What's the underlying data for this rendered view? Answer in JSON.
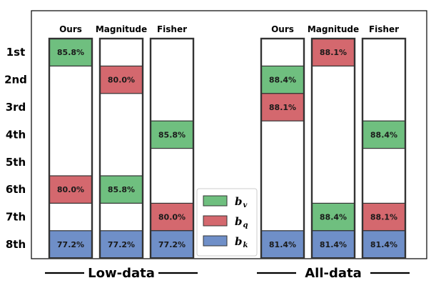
{
  "chart_data": {
    "type": "table",
    "title": "",
    "ranks": [
      "1st",
      "2nd",
      "3rd",
      "4th",
      "5th",
      "6th",
      "7th",
      "8th"
    ],
    "groups": [
      {
        "label": "Low-data",
        "columns": [
          {
            "name": "Ours",
            "cells": [
              {
                "rank": 1,
                "series": "v",
                "value": "85.8%"
              },
              {
                "rank": 6,
                "series": "q",
                "value": "80.0%"
              },
              {
                "rank": 8,
                "series": "k",
                "value": "77.2%"
              }
            ]
          },
          {
            "name": "Magnitude",
            "cells": [
              {
                "rank": 2,
                "series": "q",
                "value": "80.0%"
              },
              {
                "rank": 6,
                "series": "v",
                "value": "85.8%"
              },
              {
                "rank": 8,
                "series": "k",
                "value": "77.2%"
              }
            ]
          },
          {
            "name": "Fisher",
            "cells": [
              {
                "rank": 4,
                "series": "v",
                "value": "85.8%"
              },
              {
                "rank": 7,
                "series": "q",
                "value": "80.0%"
              },
              {
                "rank": 8,
                "series": "k",
                "value": "77.2%"
              }
            ]
          }
        ]
      },
      {
        "label": "All-data",
        "columns": [
          {
            "name": "Ours",
            "cells": [
              {
                "rank": 2,
                "series": "v",
                "value": "88.4%"
              },
              {
                "rank": 3,
                "series": "q",
                "value": "88.1%"
              },
              {
                "rank": 8,
                "series": "k",
                "value": "81.4%"
              }
            ]
          },
          {
            "name": "Magnitude",
            "cells": [
              {
                "rank": 1,
                "series": "q",
                "value": "88.1%"
              },
              {
                "rank": 7,
                "series": "v",
                "value": "88.4%"
              },
              {
                "rank": 8,
                "series": "k",
                "value": "81.4%"
              }
            ]
          },
          {
            "name": "Fisher",
            "cells": [
              {
                "rank": 4,
                "series": "v",
                "value": "88.4%"
              },
              {
                "rank": 7,
                "series": "q",
                "value": "88.1%"
              },
              {
                "rank": 8,
                "series": "k",
                "value": "81.4%"
              }
            ]
          }
        ]
      }
    ],
    "legend": [
      {
        "key": "v",
        "base": "b",
        "sub": "v",
        "color": "#6fbf7f"
      },
      {
        "key": "q",
        "base": "b",
        "sub": "q",
        "color": "#d4686e"
      },
      {
        "key": "k",
        "base": "b",
        "sub": "k",
        "color": "#6f8fc8"
      }
    ],
    "legend_position": "bottom-center",
    "grid": false
  }
}
